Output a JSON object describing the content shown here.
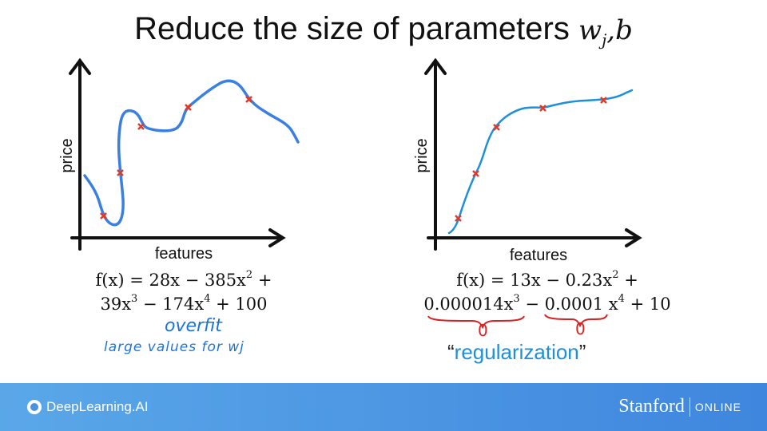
{
  "title": {
    "text": "Reduce the size of parameters",
    "vars": "w",
    "sub": "j",
    "tail": ",b"
  },
  "left_plot": {
    "ylabel": "price",
    "xlabel": "features",
    "formula_line1": [
      "f(x) = 28x − 385x",
      "2",
      " +"
    ],
    "formula_line2": [
      "39x",
      "3",
      " − 174x",
      "4",
      " + 100"
    ],
    "note1": "overfit",
    "note2": "large values for wj"
  },
  "right_plot": {
    "ylabel": "price",
    "xlabel": "features",
    "formula_line1": [
      "f(x) = 13x − 0.23x",
      "2",
      " +"
    ],
    "formula_line2": [
      "0.000014x",
      "3",
      " − 0.0001 x",
      "4",
      " + 10"
    ],
    "zero1": "0",
    "zero2": "0",
    "reg_open": "“",
    "reg_word": "regularization",
    "reg_close": "”"
  },
  "footer": {
    "brand_left": "DeepLearning.AI",
    "brand_right_1": "Stanford",
    "brand_right_2": "ONLINE"
  },
  "colors": {
    "curve": "#3b7fe0",
    "cross": "#e03a2a",
    "footer": "#4a90e2"
  }
}
